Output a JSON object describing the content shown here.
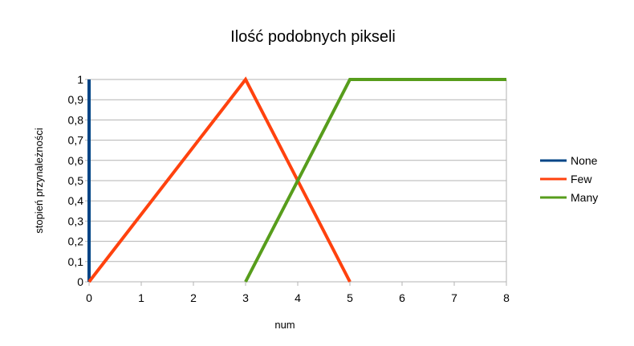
{
  "chart_data": {
    "type": "line",
    "title": "Ilość podobnych pikseli",
    "xlabel": "num",
    "ylabel": "stopień przynależności",
    "xlim": [
      0,
      8
    ],
    "ylim": [
      0,
      1
    ],
    "x_ticks": [
      "0",
      "1",
      "2",
      "3",
      "4",
      "5",
      "6",
      "7",
      "8"
    ],
    "y_ticks": [
      "0",
      "0,1",
      "0,2",
      "0,3",
      "0,4",
      "0,5",
      "0,6",
      "0,7",
      "0,8",
      "0,9",
      "1"
    ],
    "x_tick_values": [
      0,
      1,
      2,
      3,
      4,
      5,
      6,
      7,
      8
    ],
    "y_tick_values": [
      0,
      0.1,
      0.2,
      0.3,
      0.4,
      0.5,
      0.6,
      0.7,
      0.8,
      0.9,
      1
    ],
    "grid": "horizontal",
    "legend_position": "right",
    "series": [
      {
        "name": "None",
        "color": "#004586",
        "points": [
          [
            0,
            0
          ],
          [
            0,
            1
          ]
        ]
      },
      {
        "name": "Few",
        "color": "#ff420e",
        "points": [
          [
            0,
            0
          ],
          [
            3,
            1
          ],
          [
            5,
            0
          ]
        ]
      },
      {
        "name": "Many",
        "color": "#579d1c",
        "points": [
          [
            3,
            0
          ],
          [
            5,
            1
          ],
          [
            8,
            1
          ]
        ]
      }
    ]
  }
}
